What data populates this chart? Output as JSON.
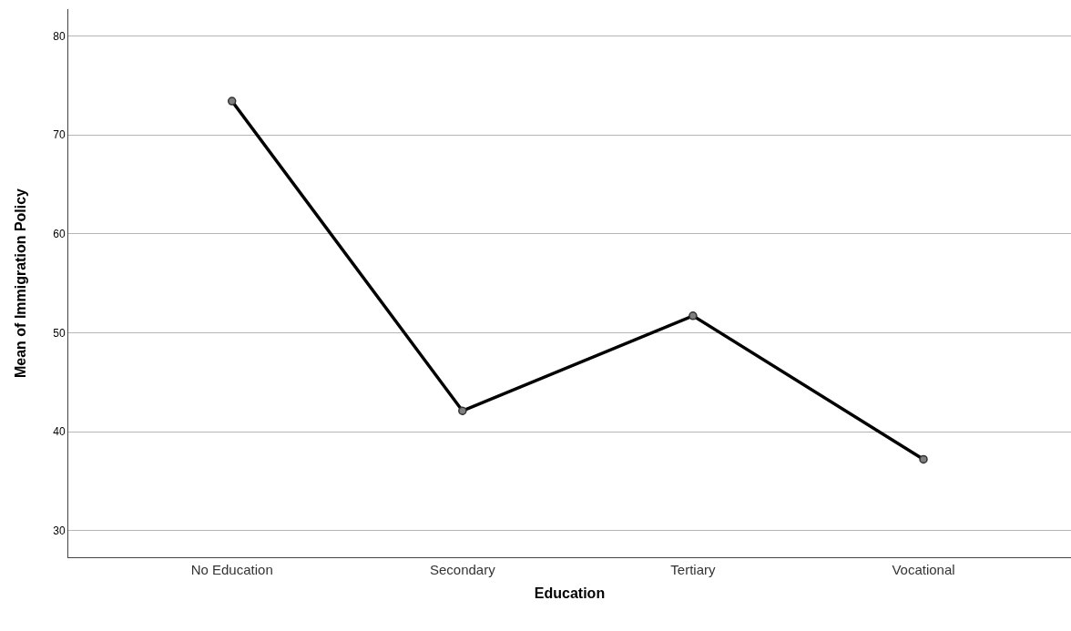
{
  "chart_data": {
    "type": "line",
    "xlabel": "Education",
    "ylabel": "Mean of Immigration Policy",
    "categories": [
      "No Education",
      "Secondary",
      "Tertiary",
      "Vocational"
    ],
    "series": [
      {
        "color": "#000000",
        "values": [
          73.4,
          42.1,
          51.7,
          37.2
        ]
      }
    ],
    "ylim": [
      27.3,
      82.7
    ],
    "yticks": [
      30,
      40,
      50,
      60,
      70,
      80
    ],
    "grid": "y",
    "marker": "circle",
    "line_style": "solid"
  }
}
